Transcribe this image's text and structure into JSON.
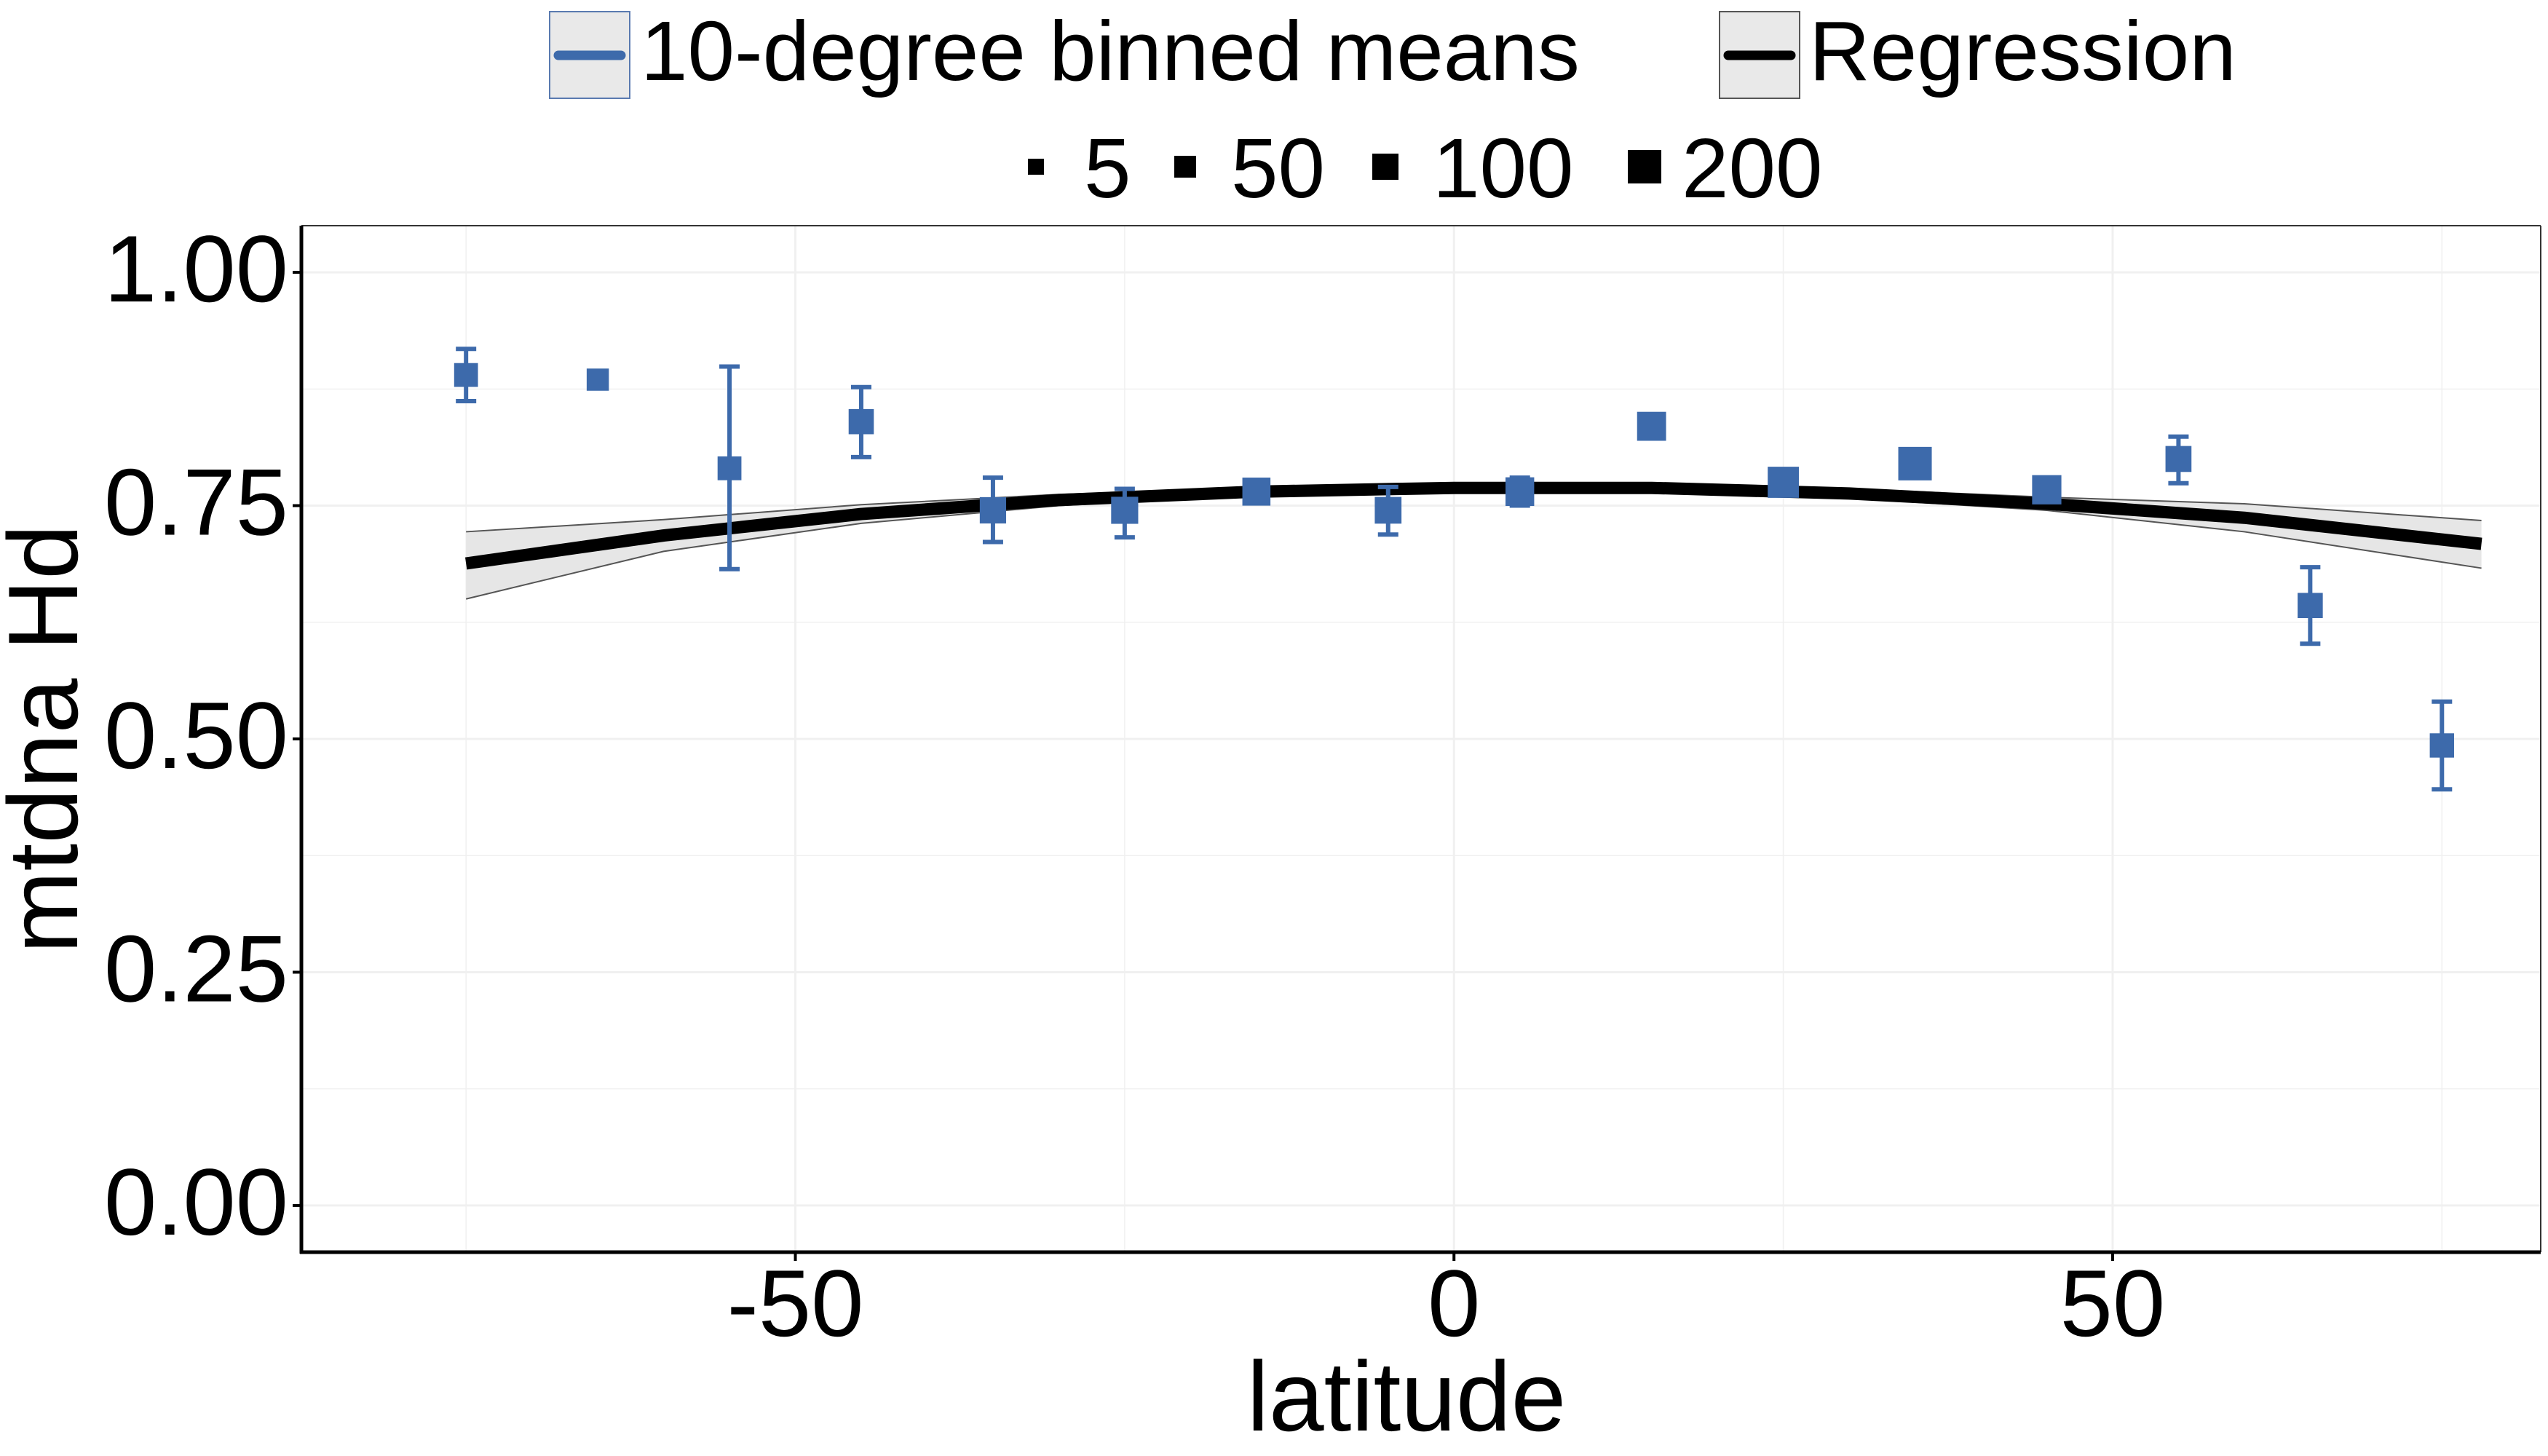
{
  "chart_data": {
    "type": "scatter",
    "title": "",
    "xlabel": "latitude",
    "ylabel": "mtdna Hd",
    "xlim": [
      -87.5,
      82.5
    ],
    "ylim": [
      -0.05,
      1.05
    ],
    "x_ticks": [
      -50,
      0,
      50
    ],
    "x_tick_labels": [
      "-50",
      "0",
      "50"
    ],
    "y_ticks": [
      0,
      0.25,
      0.5,
      0.75,
      1.0
    ],
    "y_tick_labels": [
      "0.00",
      "0.25",
      "0.50",
      "0.75",
      "1.00"
    ],
    "grid": true,
    "legend_position": "top",
    "colors": {
      "points": "#3d6aab",
      "regression": "#000000",
      "ribbon": "#e6e6e6",
      "ribbon_edge": "#555555",
      "grid": "#f0f0f0"
    },
    "legend": {
      "series": [
        {
          "label": "10-degree binned means",
          "color": "#3d6aab"
        },
        {
          "label": "Regression",
          "color": "#000000"
        }
      ],
      "size_labels": [
        "5",
        "50",
        "100",
        "200"
      ],
      "size_values": [
        5,
        50,
        100,
        200
      ]
    },
    "series": [
      {
        "name": "10-degree binned means",
        "points": [
          {
            "x": -75,
            "y": 0.89,
            "lo": 0.862,
            "hi": 0.918,
            "n": 40
          },
          {
            "x": -65,
            "y": 0.885,
            "lo": null,
            "hi": null,
            "n": 25
          },
          {
            "x": -55,
            "y": 0.79,
            "lo": 0.682,
            "hi": 0.899,
            "n": 40
          },
          {
            "x": -45,
            "y": 0.84,
            "lo": 0.802,
            "hi": 0.877,
            "n": 55
          },
          {
            "x": -35,
            "y": 0.745,
            "lo": 0.711,
            "hi": 0.78,
            "n": 70
          },
          {
            "x": -25,
            "y": 0.745,
            "lo": 0.716,
            "hi": 0.768,
            "n": 80
          },
          {
            "x": -15,
            "y": 0.765,
            "lo": 0.756,
            "hi": 0.776,
            "n": 95
          },
          {
            "x": -5,
            "y": 0.745,
            "lo": 0.719,
            "hi": 0.77,
            "n": 75
          },
          {
            "x": 5,
            "y": 0.765,
            "lo": 0.75,
            "hi": 0.78,
            "n": 105
          },
          {
            "x": 15,
            "y": 0.835,
            "lo": 0.826,
            "hi": 0.845,
            "n": 110
          },
          {
            "x": 25,
            "y": 0.775,
            "lo": 0.768,
            "hi": 0.782,
            "n": 150
          },
          {
            "x": 35,
            "y": 0.795,
            "lo": 0.786,
            "hi": 0.806,
            "n": 200
          },
          {
            "x": 45,
            "y": 0.767,
            "lo": 0.757,
            "hi": 0.778,
            "n": 115
          },
          {
            "x": 55,
            "y": 0.8,
            "lo": 0.774,
            "hi": 0.824,
            "n": 65
          },
          {
            "x": 65,
            "y": 0.643,
            "lo": 0.602,
            "hi": 0.684,
            "n": 55
          },
          {
            "x": 75,
            "y": 0.493,
            "lo": 0.446,
            "hi": 0.54,
            "n": 45
          }
        ]
      },
      {
        "name": "Regression",
        "type": "line",
        "x": [
          -75,
          -60,
          -45,
          -30,
          -15,
          0,
          15,
          30,
          45,
          60,
          78
        ],
        "y": [
          0.688,
          0.718,
          0.741,
          0.756,
          0.765,
          0.769,
          0.769,
          0.763,
          0.752,
          0.737,
          0.709
        ],
        "ci_lower": [
          0.65,
          0.701,
          0.731,
          0.75,
          0.761,
          0.766,
          0.766,
          0.758,
          0.745,
          0.722,
          0.683
        ],
        "ci_upper": [
          0.722,
          0.735,
          0.751,
          0.762,
          0.769,
          0.772,
          0.772,
          0.768,
          0.759,
          0.752,
          0.734
        ]
      }
    ]
  }
}
